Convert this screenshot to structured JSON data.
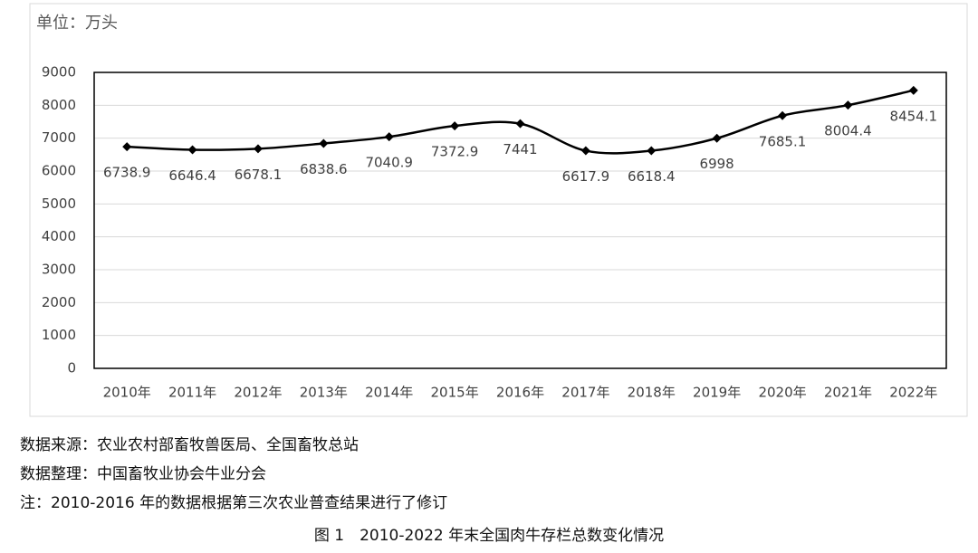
{
  "chart_data": {
    "type": "line",
    "unit_label": "单位：万头",
    "categories": [
      "2010年",
      "2011年",
      "2012年",
      "2013年",
      "2014年",
      "2015年",
      "2016年",
      "2017年",
      "2018年",
      "2019年",
      "2020年",
      "2021年",
      "2022年"
    ],
    "series": [
      {
        "color": "#000000",
        "values": [
          6738.9,
          6646.4,
          6678.1,
          6838.6,
          7040.9,
          7372.9,
          7441,
          6617.9,
          6618.4,
          6998,
          7685.1,
          8004.4,
          8454.1
        ]
      }
    ],
    "ylim": [
      0,
      9000
    ],
    "yticks": [
      0,
      1000,
      2000,
      3000,
      4000,
      5000,
      6000,
      7000,
      8000,
      9000
    ],
    "grid": true,
    "smooth": true
  },
  "notes": [
    "数据来源：农业农村部畜牧兽医局、全国畜牧总站",
    "数据整理：中国畜牧业协会牛业分会",
    "注：2010-2016 年的数据根据第三次农业普查结果进行了修订"
  ],
  "caption": "图 1　2010-2022 年末全国肉牛存栏总数变化情况"
}
